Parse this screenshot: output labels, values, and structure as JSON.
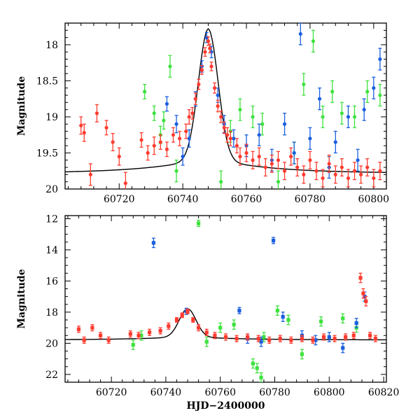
{
  "chart_data": [
    {
      "type": "scatter",
      "title": "",
      "xlabel": "",
      "ylabel": "Magnitude",
      "xlim": [
        60703,
        60804
      ],
      "ylim": [
        20,
        17.7
      ],
      "y_inverted": true,
      "x_ticks": [
        60720,
        60740,
        60760,
        60780,
        60800
      ],
      "x_tick_labels": [
        "60720",
        "60740",
        "60760",
        "60780",
        "60800"
      ],
      "y_ticks": [
        18,
        18.5,
        19,
        19.5,
        20
      ],
      "y_tick_labels": [
        "18",
        "18.5",
        "19",
        "19.5",
        "20"
      ],
      "grid": false,
      "legend": "none",
      "colors": {
        "red": "#ff3b2f",
        "blue": "#1a5fe0",
        "green": "#3de23d",
        "fit": "#000000"
      },
      "series": [
        {
          "color": "red",
          "points": [
            [
              60708,
              19.12,
              0.12
            ],
            [
              60709,
              19.22,
              0.12
            ],
            [
              60711,
              19.8,
              0.15
            ],
            [
              60713,
              18.95,
              0.12
            ],
            [
              60716,
              19.15,
              0.1
            ],
            [
              60718,
              19.35,
              0.12
            ],
            [
              60720,
              19.55,
              0.12
            ],
            [
              60722,
              19.92,
              0.15
            ],
            [
              60727,
              19.32,
              0.1
            ],
            [
              60729,
              19.5,
              0.1
            ],
            [
              60731,
              19.4,
              0.12
            ],
            [
              60733,
              19.35,
              0.1
            ],
            [
              60735,
              19.45,
              0.1
            ],
            [
              60737,
              19.25,
              0.1
            ],
            [
              60739,
              19.3,
              0.1
            ],
            [
              60741,
              19.2,
              0.1
            ],
            [
              60742,
              19.0,
              0.1
            ],
            [
              60743,
              18.95,
              0.08
            ],
            [
              60744,
              18.75,
              0.08
            ],
            [
              60745,
              18.55,
              0.07
            ],
            [
              60746,
              18.35,
              0.06
            ],
            [
              60747,
              18.1,
              0.06
            ],
            [
              60748,
              17.95,
              0.06
            ],
            [
              60748.5,
              18.05,
              0.06
            ],
            [
              60749,
              18.3,
              0.06
            ],
            [
              60750,
              18.6,
              0.07
            ],
            [
              60751,
              18.85,
              0.08
            ],
            [
              60752,
              19.0,
              0.08
            ],
            [
              60753,
              19.15,
              0.08
            ],
            [
              60754,
              19.25,
              0.1
            ],
            [
              60755,
              19.3,
              0.1
            ],
            [
              60757,
              19.4,
              0.1
            ],
            [
              60758,
              19.55,
              0.12
            ],
            [
              60760,
              19.5,
              0.12
            ],
            [
              60762,
              19.6,
              0.12
            ],
            [
              60764,
              19.55,
              0.12
            ],
            [
              60766,
              19.7,
              0.12
            ],
            [
              60768,
              19.65,
              0.12
            ],
            [
              60770,
              19.6,
              0.12
            ],
            [
              60772,
              19.75,
              0.12
            ],
            [
              60774,
              19.55,
              0.12
            ],
            [
              60776,
              19.7,
              0.12
            ],
            [
              60778,
              19.8,
              0.12
            ],
            [
              60780,
              19.6,
              0.12
            ],
            [
              60782,
              19.75,
              0.12
            ],
            [
              60784,
              19.85,
              0.12
            ],
            [
              60786,
              19.65,
              0.12
            ],
            [
              60788,
              19.8,
              0.12
            ],
            [
              60790,
              19.7,
              0.12
            ],
            [
              60792,
              19.85,
              0.12
            ],
            [
              60794,
              19.75,
              0.12
            ],
            [
              60796,
              19.8,
              0.12
            ],
            [
              60798,
              19.7,
              0.12
            ],
            [
              60800,
              19.85,
              0.12
            ],
            [
              60802,
              19.75,
              0.12
            ]
          ]
        },
        {
          "color": "blue",
          "points": [
            [
              60735,
              18.82,
              0.1
            ],
            [
              60738,
              19.1,
              0.12
            ],
            [
              60740,
              19.55,
              0.12
            ],
            [
              60742,
              19.3,
              0.12
            ],
            [
              60744,
              18.75,
              0.1
            ],
            [
              60746,
              18.3,
              0.08
            ],
            [
              60747.5,
              17.9,
              0.07
            ],
            [
              60749,
              18.1,
              0.08
            ],
            [
              60751,
              18.7,
              0.1
            ],
            [
              60753,
              19.1,
              0.12
            ],
            [
              60756,
              19.3,
              0.12
            ],
            [
              60760,
              19.4,
              0.15
            ],
            [
              60764,
              19.25,
              0.15
            ],
            [
              60768,
              19.6,
              0.15
            ],
            [
              60772,
              19.1,
              0.15
            ],
            [
              60775,
              19.5,
              0.15
            ],
            [
              60777,
              17.85,
              0.15
            ],
            [
              60780,
              19.3,
              0.15
            ],
            [
              60783,
              18.75,
              0.15
            ],
            [
              60786,
              19.7,
              0.15
            ],
            [
              60788,
              19.35,
              0.15
            ],
            [
              60792,
              19.0,
              0.15
            ],
            [
              60795,
              19.6,
              0.15
            ],
            [
              60797,
              18.9,
              0.15
            ],
            [
              60800,
              18.6,
              0.15
            ],
            [
              60802,
              18.2,
              0.15
            ]
          ]
        },
        {
          "color": "green",
          "points": [
            [
              60728,
              18.65,
              0.1
            ],
            [
              60731,
              18.95,
              0.1
            ],
            [
              60733,
              19.25,
              0.12
            ],
            [
              60734,
              19.05,
              0.12
            ],
            [
              60736,
              18.3,
              0.15
            ],
            [
              60738,
              19.75,
              0.15
            ],
            [
              60752,
              19.9,
              0.15
            ],
            [
              60755,
              19.2,
              0.15
            ],
            [
              60758,
              18.9,
              0.15
            ],
            [
              60762,
              19.0,
              0.15
            ],
            [
              60765,
              19.1,
              0.15
            ],
            [
              60770,
              19.9,
              0.15
            ],
            [
              60775,
              19.5,
              0.15
            ],
            [
              60778,
              18.55,
              0.15
            ],
            [
              60781,
              17.95,
              0.15
            ],
            [
              60784,
              19.0,
              0.15
            ],
            [
              60787,
              18.65,
              0.15
            ],
            [
              60790,
              18.95,
              0.15
            ],
            [
              60794,
              19.0,
              0.15
            ],
            [
              60798,
              18.65,
              0.15
            ],
            [
              60802,
              18.7,
              0.15
            ]
          ]
        }
      ]
    },
    {
      "type": "scatter",
      "title": "",
      "xlabel": "HJD−2400000",
      "ylabel": "Magnitude",
      "xlim": [
        60703,
        60821
      ],
      "ylim": [
        22.5,
        11.8
      ],
      "y_inverted": true,
      "x_ticks": [
        60720,
        60740,
        60760,
        60780,
        60800,
        60820
      ],
      "x_tick_labels": [
        "60720",
        "60740",
        "60760",
        "60780",
        "60800",
        "60820"
      ],
      "y_ticks": [
        12,
        14,
        16,
        18,
        20,
        22
      ],
      "y_tick_labels": [
        "12",
        "14",
        "16",
        "18",
        "20",
        "22"
      ],
      "grid": false,
      "legend": "none",
      "series": [
        {
          "color": "red",
          "points": [
            [
              60708,
              19.1,
              0.2
            ],
            [
              60710,
              19.8,
              0.2
            ],
            [
              60713,
              19.0,
              0.2
            ],
            [
              60716,
              19.5,
              0.2
            ],
            [
              60719,
              19.8,
              0.2
            ],
            [
              60727,
              19.4,
              0.2
            ],
            [
              60730,
              19.5,
              0.2
            ],
            [
              60734,
              19.3,
              0.2
            ],
            [
              60738,
              19.2,
              0.2
            ],
            [
              60741,
              18.9,
              0.2
            ],
            [
              60744,
              18.5,
              0.15
            ],
            [
              60746,
              18.2,
              0.15
            ],
            [
              60748,
              17.95,
              0.15
            ],
            [
              60750,
              18.5,
              0.15
            ],
            [
              60752,
              19.0,
              0.2
            ],
            [
              60755,
              19.3,
              0.2
            ],
            [
              60758,
              19.5,
              0.2
            ],
            [
              60762,
              19.6,
              0.2
            ],
            [
              60766,
              19.7,
              0.2
            ],
            [
              60770,
              19.6,
              0.2
            ],
            [
              60774,
              19.7,
              0.2
            ],
            [
              60778,
              19.8,
              0.2
            ],
            [
              60782,
              19.7,
              0.2
            ],
            [
              60786,
              19.8,
              0.2
            ],
            [
              60790,
              19.7,
              0.2
            ],
            [
              60794,
              19.8,
              0.2
            ],
            [
              60798,
              19.6,
              0.2
            ],
            [
              60802,
              19.7,
              0.2
            ],
            [
              60806,
              19.6,
              0.2
            ],
            [
              60809,
              19.5,
              0.2
            ],
            [
              60811.5,
              15.8,
              0.3
            ],
            [
              60812.5,
              16.8,
              0.3
            ],
            [
              60813.5,
              17.3,
              0.3
            ],
            [
              60815,
              19.5,
              0.2
            ],
            [
              60817,
              19.7,
              0.2
            ]
          ]
        },
        {
          "color": "blue",
          "points": [
            [
              60735.5,
              13.55,
              0.3
            ],
            [
              60747.5,
              17.95,
              0.2
            ],
            [
              60767,
              17.9,
              0.2
            ],
            [
              60770,
              19.7,
              0.3
            ],
            [
              60775,
              19.9,
              0.3
            ],
            [
              60779.5,
              13.4,
              0.2
            ],
            [
              60783,
              18.3,
              0.3
            ],
            [
              60790,
              19.5,
              0.3
            ],
            [
              60795,
              19.8,
              0.3
            ],
            [
              60800,
              19.6,
              0.3
            ],
            [
              60805,
              20.3,
              0.3
            ],
            [
              60810,
              18.7,
              0.3
            ],
            [
              60813,
              17.0,
              0.3
            ]
          ]
        },
        {
          "color": "green",
          "points": [
            [
              60728,
              20.1,
              0.3
            ],
            [
              60731,
              19.5,
              0.3
            ],
            [
              60752,
              12.3,
              0.2
            ],
            [
              60755,
              19.9,
              0.3
            ],
            [
              60760,
              19.0,
              0.3
            ],
            [
              60765,
              18.8,
              0.3
            ],
            [
              60772,
              21.3,
              0.3
            ],
            [
              60773.5,
              21.6,
              0.3
            ],
            [
              60775,
              22.2,
              0.3
            ],
            [
              60776,
              19.6,
              0.3
            ],
            [
              60781,
              17.9,
              0.3
            ],
            [
              60785,
              18.5,
              0.3
            ],
            [
              60790,
              20.7,
              0.3
            ],
            [
              60797,
              18.6,
              0.3
            ],
            [
              60805,
              18.4,
              0.3
            ],
            [
              60810,
              19.0,
              0.3
            ]
          ]
        }
      ]
    }
  ]
}
